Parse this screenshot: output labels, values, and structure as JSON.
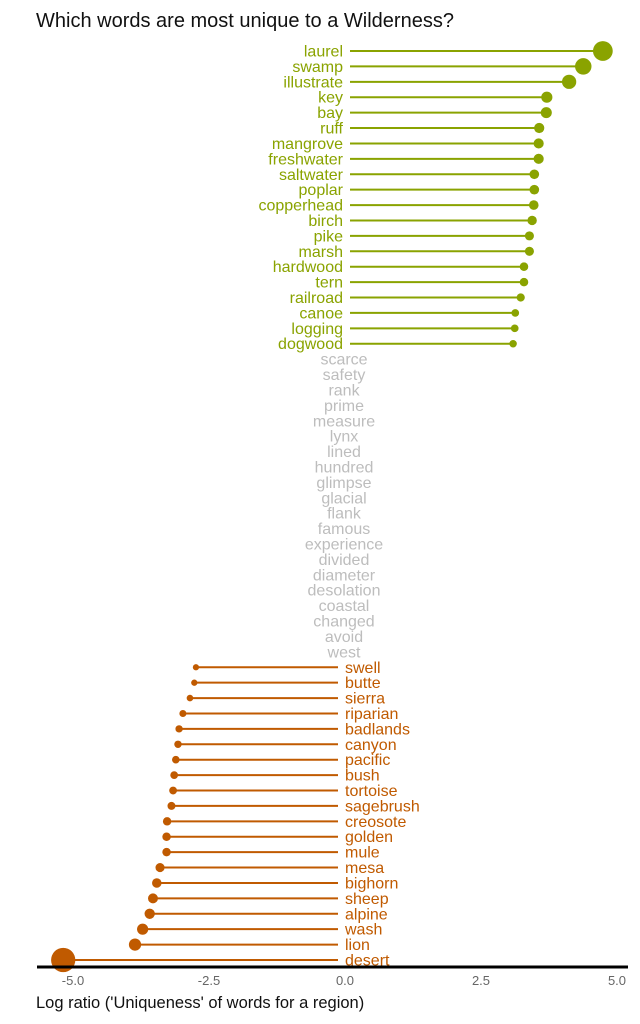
{
  "chart_data": {
    "type": "lollipop",
    "title": "Which words are most unique to a Wilderness?",
    "xlabel": "Log ratio ('Uniqueness' of words for a region)",
    "xlim": [
      -5.5,
      5.3
    ],
    "xticks": [
      -5.0,
      -2.5,
      0.0,
      2.5,
      5.0
    ],
    "xtick_labels": [
      "-5.0",
      "-2.5",
      "0.0",
      "2.5",
      "5.0"
    ],
    "grid": false,
    "colors": {
      "positive": "#8aa300",
      "neutral": "#bdbdbd",
      "negative": "#c05a00",
      "axis": "#000000"
    },
    "positive": [
      {
        "word": "laurel",
        "value": 4.74
      },
      {
        "word": "swamp",
        "value": 4.38
      },
      {
        "word": "illustrate",
        "value": 4.12
      },
      {
        "word": "key",
        "value": 3.71
      },
      {
        "word": "bay",
        "value": 3.7
      },
      {
        "word": "ruff",
        "value": 3.57
      },
      {
        "word": "mangrove",
        "value": 3.56
      },
      {
        "word": "freshwater",
        "value": 3.56
      },
      {
        "word": "saltwater",
        "value": 3.48
      },
      {
        "word": "poplar",
        "value": 3.48
      },
      {
        "word": "copperhead",
        "value": 3.47
      },
      {
        "word": "birch",
        "value": 3.44
      },
      {
        "word": "pike",
        "value": 3.39
      },
      {
        "word": "marsh",
        "value": 3.39
      },
      {
        "word": "hardwood",
        "value": 3.29
      },
      {
        "word": "tern",
        "value": 3.29
      },
      {
        "word": "railroad",
        "value": 3.23
      },
      {
        "word": "canoe",
        "value": 3.13
      },
      {
        "word": "logging",
        "value": 3.12
      },
      {
        "word": "dogwood",
        "value": 3.09
      }
    ],
    "neutral": [
      "scarce",
      "safety",
      "rank",
      "prime",
      "measure",
      "lynx",
      "lined",
      "hundred",
      "glimpse",
      "glacial",
      "flank",
      "famous",
      "experience",
      "divided",
      "diameter",
      "desolation",
      "coastal",
      "changed",
      "avoid",
      "west"
    ],
    "negative": [
      {
        "word": "swell",
        "value": -2.74
      },
      {
        "word": "butte",
        "value": -2.77
      },
      {
        "word": "sierra",
        "value": -2.85
      },
      {
        "word": "riparian",
        "value": -2.98
      },
      {
        "word": "badlands",
        "value": -3.05
      },
      {
        "word": "canyon",
        "value": -3.07
      },
      {
        "word": "pacific",
        "value": -3.11
      },
      {
        "word": "bush",
        "value": -3.14
      },
      {
        "word": "tortoise",
        "value": -3.16
      },
      {
        "word": "sagebrush",
        "value": -3.19
      },
      {
        "word": "creosote",
        "value": -3.27
      },
      {
        "word": "golden",
        "value": -3.28
      },
      {
        "word": "mule",
        "value": -3.28
      },
      {
        "word": "mesa",
        "value": -3.4
      },
      {
        "word": "bighorn",
        "value": -3.46
      },
      {
        "word": "sheep",
        "value": -3.53
      },
      {
        "word": "alpine",
        "value": -3.59
      },
      {
        "word": "wash",
        "value": -3.72
      },
      {
        "word": "lion",
        "value": -3.86
      },
      {
        "word": "desert",
        "value": -5.18
      }
    ]
  }
}
